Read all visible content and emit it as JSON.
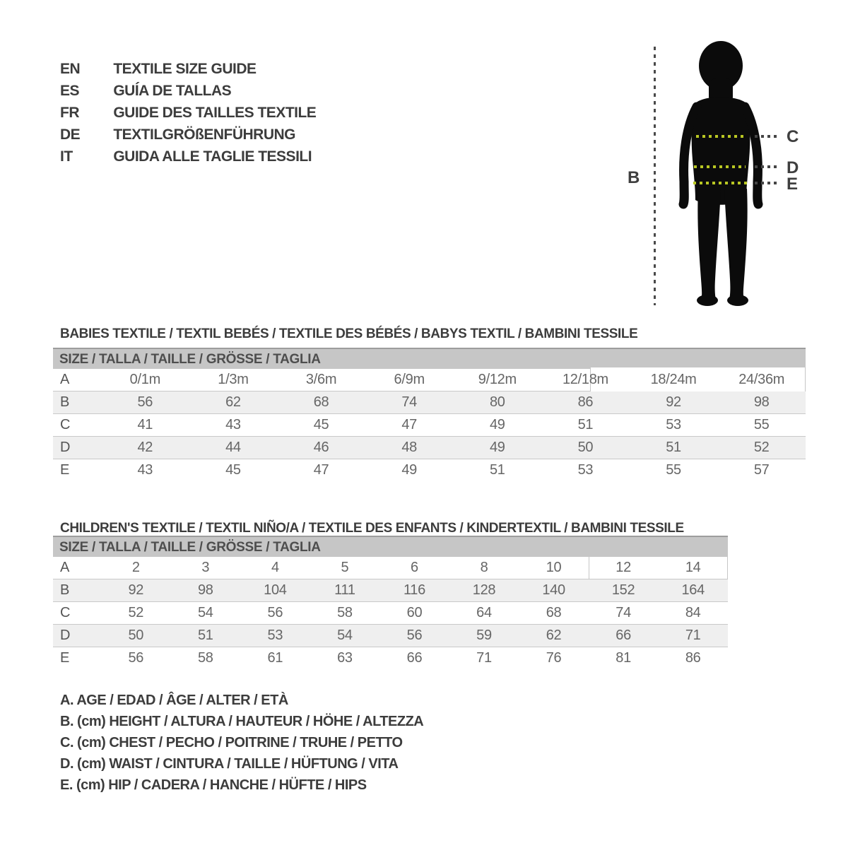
{
  "header": {
    "languages": [
      {
        "code": "EN",
        "title": "TEXTILE SIZE GUIDE"
      },
      {
        "code": "ES",
        "title": "GUÍA DE TALLAS"
      },
      {
        "code": "FR",
        "title": "GUIDE DES TAILLES TEXTILE"
      },
      {
        "code": "DE",
        "title": "TEXTILGRÖßENFÜHRUNG"
      },
      {
        "code": "IT",
        "title": "GUIDA ALLE TAGLIE TESSILI"
      }
    ]
  },
  "figure": {
    "height_label": "B",
    "chest_label": "C",
    "waist_label": "D",
    "hip_label": "E",
    "colors": {
      "silhouette": "#0b0b0b",
      "measure_dots": "#b9c723",
      "guide_dots": "#454545"
    }
  },
  "babies": {
    "heading": "BABIES TEXTILE / TEXTIL BEBÉS / TEXTILE DES BÉBÉS / BABYS TEXTIL / BAMBINI TESSILE",
    "size_header": "SIZE / TALLA / TAILLE / GRÖSSE / TAGLIA",
    "rows": [
      {
        "label": "A",
        "values": [
          "0/1m",
          "1/3m",
          "3/6m",
          "6/9m",
          "9/12m",
          "12/18m",
          "18/24m",
          "24/36m"
        ]
      },
      {
        "label": "B",
        "values": [
          56,
          62,
          68,
          74,
          80,
          86,
          92,
          98
        ]
      },
      {
        "label": "C",
        "values": [
          41,
          43,
          45,
          47,
          49,
          51,
          53,
          55
        ]
      },
      {
        "label": "D",
        "values": [
          42,
          44,
          46,
          48,
          49,
          50,
          51,
          52
        ]
      },
      {
        "label": "E",
        "values": [
          43,
          45,
          47,
          49,
          51,
          53,
          55,
          57
        ]
      }
    ]
  },
  "children": {
    "heading": "CHILDREN'S TEXTILE / TEXTIL NIÑO/A / TEXTILE DES ENFANTS / KINDERTEXTIL / BAMBINI TESSILE",
    "size_header": "SIZE / TALLA / TAILLE / GRÖSSE / TAGLIA",
    "rows": [
      {
        "label": "A",
        "values": [
          2,
          3,
          4,
          5,
          6,
          8,
          10,
          12,
          14
        ]
      },
      {
        "label": "B",
        "values": [
          92,
          98,
          104,
          111,
          116,
          128,
          140,
          152,
          164
        ]
      },
      {
        "label": "C",
        "values": [
          52,
          54,
          56,
          58,
          60,
          64,
          68,
          74,
          84
        ]
      },
      {
        "label": "D",
        "values": [
          50,
          51,
          53,
          54,
          56,
          59,
          62,
          66,
          71
        ]
      },
      {
        "label": "E",
        "values": [
          56,
          58,
          61,
          63,
          66,
          71,
          76,
          81,
          86
        ]
      }
    ]
  },
  "legend": {
    "items": [
      "A. AGE / EDAD / ÂGE / ALTER / ETÀ",
      "B. (cm) HEIGHT / ALTURA / HAUTEUR / HÖHE / ALTEZZA",
      "C. (cm) CHEST / PECHO / POITRINE / TRUHE / PETTO",
      "D. (cm) WAIST / CINTURA / TAILLE / HÜFTUNG / VITA",
      "E. (cm) HIP / CADERA / HANCHE / HÜFTE / HIPS"
    ]
  }
}
